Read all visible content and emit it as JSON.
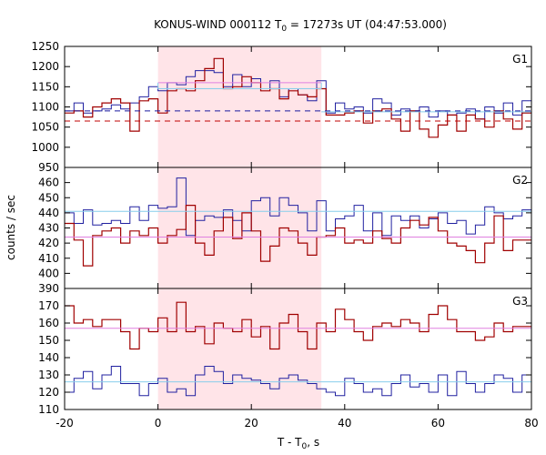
{
  "chart_data": {
    "type": "line",
    "title": "KONUS-WIND 000112 T",
    "title_sub": "0",
    "title_rest": " = 17273s UT (04:47:53.000)",
    "xlabel": "T - T",
    "xlabel_sub": "0",
    "xlabel_rest": ", s",
    "ylabel": "counts / sec",
    "xlim": [
      -20,
      80
    ],
    "x_ticks": [
      -20,
      0,
      20,
      40,
      60,
      80
    ],
    "shaded_interval": [
      0,
      35
    ],
    "colors": {
      "red_series": "#a00000",
      "blue_series": "#2020a0",
      "cyan_line": "#87ceeb",
      "pink_line": "#e080e0",
      "shade": "#ffe4e8",
      "hline_red": "#c00000",
      "hline_blue": "#1a1aa0"
    },
    "bin_edges": [
      -20,
      -18,
      -16,
      -14,
      -12,
      -10,
      -8,
      -6,
      -4,
      -2,
      0,
      2,
      4,
      6,
      8,
      10,
      12,
      14,
      16,
      18,
      20,
      22,
      24,
      26,
      28,
      30,
      32,
      34,
      36,
      38,
      40,
      42,
      44,
      46,
      48,
      50,
      52,
      54,
      56,
      58,
      60,
      62,
      64,
      66,
      68,
      70,
      72,
      74,
      76,
      78,
      80
    ],
    "panels": [
      {
        "label": "G1",
        "ylim": [
          950,
          1250
        ],
        "y_ticks": [
          950,
          1000,
          1050,
          1100,
          1150,
          1200,
          1250
        ],
        "red_values": [
          1085,
          1090,
          1075,
          1100,
          1110,
          1120,
          1110,
          1040,
          1115,
          1120,
          1085,
          1140,
          1145,
          1140,
          1165,
          1195,
          1220,
          1145,
          1150,
          1175,
          1160,
          1140,
          1145,
          1120,
          1140,
          1130,
          1125,
          1145,
          1080,
          1080,
          1085,
          1090,
          1060,
          1090,
          1095,
          1070,
          1040,
          1090,
          1045,
          1025,
          1055,
          1080,
          1040,
          1080,
          1070,
          1050,
          1090,
          1070,
          1045,
          1085
        ],
        "blue_values": [
          1090,
          1110,
          1085,
          1090,
          1095,
          1105,
          1095,
          1110,
          1125,
          1150,
          1140,
          1160,
          1155,
          1175,
          1190,
          1190,
          1185,
          1150,
          1180,
          1150,
          1170,
          1145,
          1165,
          1125,
          1145,
          1130,
          1115,
          1165,
          1085,
          1110,
          1095,
          1100,
          1085,
          1120,
          1110,
          1080,
          1095,
          1090,
          1100,
          1075,
          1090,
          1080,
          1085,
          1095,
          1070,
          1100,
          1085,
          1110,
          1080,
          1115
        ],
        "cyan_hline": {
          "value": 1145,
          "x": [
            0,
            35
          ]
        },
        "pink_hline": {
          "value": 1160,
          "x": [
            0,
            35
          ]
        },
        "dashed_red": {
          "value": 1065,
          "x": [
            -20,
            80
          ]
        },
        "dashed_blue": {
          "value": 1090,
          "x": [
            -20,
            80
          ]
        },
        "cyan_solid_outside": {
          "value": 1088,
          "x": [
            35,
            80
          ]
        }
      },
      {
        "label": "G2",
        "ylim": [
          390,
          470
        ],
        "y_ticks": [
          390,
          400,
          410,
          420,
          430,
          440,
          450,
          460
        ],
        "red_values": [
          433,
          422,
          405,
          425,
          428,
          430,
          420,
          428,
          425,
          430,
          420,
          425,
          429,
          445,
          420,
          412,
          428,
          437,
          423,
          440,
          428,
          408,
          418,
          430,
          428,
          420,
          412,
          424,
          425,
          430,
          420,
          422,
          420,
          428,
          423,
          420,
          430,
          435,
          432,
          437,
          428,
          420,
          418,
          415,
          407,
          420,
          438,
          415,
          422,
          422
        ],
        "blue_values": [
          440,
          433,
          442,
          432,
          433,
          435,
          433,
          444,
          435,
          445,
          443,
          444,
          463,
          425,
          435,
          438,
          437,
          442,
          435,
          428,
          448,
          450,
          438,
          450,
          445,
          440,
          428,
          448,
          428,
          436,
          438,
          445,
          428,
          440,
          425,
          438,
          435,
          438,
          430,
          436,
          440,
          433,
          435,
          426,
          432,
          444,
          440,
          436,
          438,
          442
        ],
        "cyan_hline": {
          "value": 441,
          "x": [
            -20,
            80
          ]
        },
        "pink_hline": {
          "value": 424,
          "x": [
            -20,
            80
          ]
        }
      },
      {
        "label": "G3",
        "ylim": [
          110,
          180
        ],
        "y_ticks": [
          110,
          120,
          130,
          140,
          150,
          160,
          170
        ],
        "red_values": [
          170,
          160,
          162,
          158,
          162,
          162,
          155,
          145,
          157,
          155,
          163,
          155,
          172,
          155,
          158,
          148,
          160,
          157,
          155,
          162,
          152,
          158,
          145,
          160,
          165,
          155,
          145,
          160,
          155,
          168,
          162,
          155,
          150,
          158,
          160,
          158,
          162,
          160,
          155,
          165,
          170,
          162,
          155,
          155,
          150,
          152,
          160,
          155,
          158,
          158
        ],
        "blue_values": [
          120,
          128,
          132,
          122,
          130,
          135,
          125,
          125,
          118,
          125,
          128,
          120,
          122,
          118,
          130,
          135,
          132,
          125,
          130,
          128,
          127,
          125,
          122,
          128,
          130,
          127,
          125,
          122,
          120,
          118,
          128,
          125,
          120,
          122,
          118,
          125,
          130,
          123,
          125,
          120,
          130,
          118,
          132,
          125,
          120,
          125,
          130,
          128,
          120,
          130
        ],
        "cyan_hline": {
          "value": 126,
          "x": [
            -20,
            80
          ]
        },
        "pink_hline": {
          "value": 157,
          "x": [
            -20,
            80
          ]
        }
      }
    ]
  }
}
